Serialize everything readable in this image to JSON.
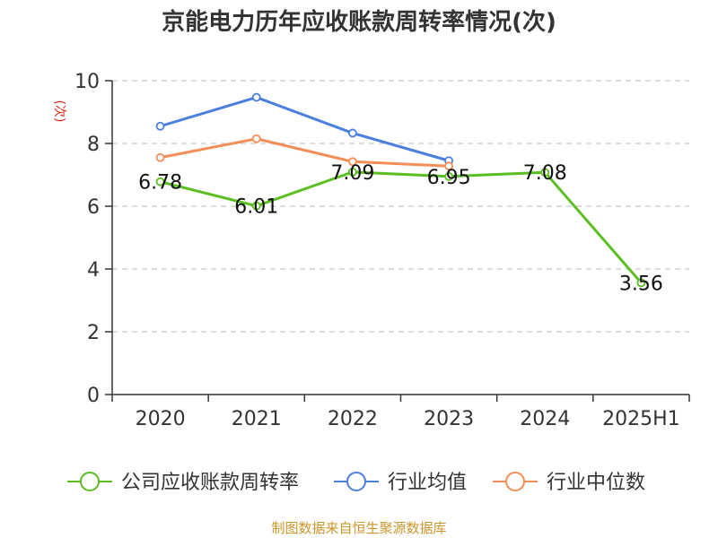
{
  "chart_data": {
    "type": "line",
    "title": "京能电力历年应收账款周转率情况(次)",
    "ylabel": "(次)",
    "categories": [
      "2020",
      "2021",
      "2022",
      "2023",
      "2024",
      "2025H1"
    ],
    "yticks": [
      "0",
      "2",
      "4",
      "6",
      "8",
      "10"
    ],
    "ylim": [
      0,
      10
    ],
    "grid": true,
    "legend_position": "bottom",
    "series": [
      {
        "name": "公司应收账款周转率",
        "color": "#5bbf21",
        "values": [
          6.78,
          6.01,
          7.09,
          6.95,
          7.08,
          3.56
        ],
        "labels": [
          "6.78",
          "6.01",
          "7.09",
          "6.95",
          "7.08",
          "3.56"
        ]
      },
      {
        "name": "行业均值",
        "color": "#4a7fe0",
        "values": [
          8.55,
          9.47,
          8.33,
          7.45,
          null,
          null
        ]
      },
      {
        "name": "行业中位数",
        "color": "#f48d58",
        "values": [
          7.55,
          8.15,
          7.42,
          7.28,
          null,
          null
        ]
      }
    ]
  },
  "source": "制图数据来自恒生聚源数据库"
}
